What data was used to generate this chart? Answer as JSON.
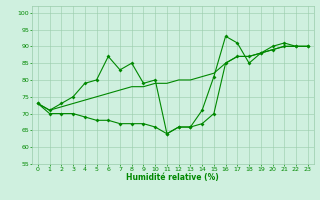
{
  "x": [
    0,
    1,
    2,
    3,
    4,
    5,
    6,
    7,
    8,
    9,
    10,
    11,
    12,
    13,
    14,
    15,
    16,
    17,
    18,
    19,
    20,
    21,
    22,
    23
  ],
  "line1": [
    73,
    71,
    73,
    75,
    79,
    80,
    87,
    83,
    85,
    79,
    80,
    64,
    66,
    66,
    71,
    81,
    93,
    91,
    85,
    88,
    90,
    91,
    90,
    90
  ],
  "line2": [
    73,
    70,
    70,
    70,
    69,
    68,
    68,
    67,
    67,
    67,
    66,
    64,
    66,
    66,
    67,
    70,
    85,
    87,
    87,
    88,
    89,
    90,
    90,
    90
  ],
  "line3": [
    73,
    71,
    72,
    73,
    74,
    75,
    76,
    77,
    78,
    78,
    79,
    79,
    80,
    80,
    81,
    82,
    85,
    87,
    87,
    88,
    89,
    90,
    90,
    90
  ],
  "bg_color": "#cff0df",
  "grid_color": "#99ccaa",
  "line_color": "#008800",
  "xlabel": "Humidité relative (%)",
  "ylim": [
    55,
    102
  ],
  "xlim": [
    -0.5,
    23.5
  ],
  "yticks": [
    55,
    60,
    65,
    70,
    75,
    80,
    85,
    90,
    95,
    100
  ],
  "xticks": [
    0,
    1,
    2,
    3,
    4,
    5,
    6,
    7,
    8,
    9,
    10,
    11,
    12,
    13,
    14,
    15,
    16,
    17,
    18,
    19,
    20,
    21,
    22,
    23
  ]
}
